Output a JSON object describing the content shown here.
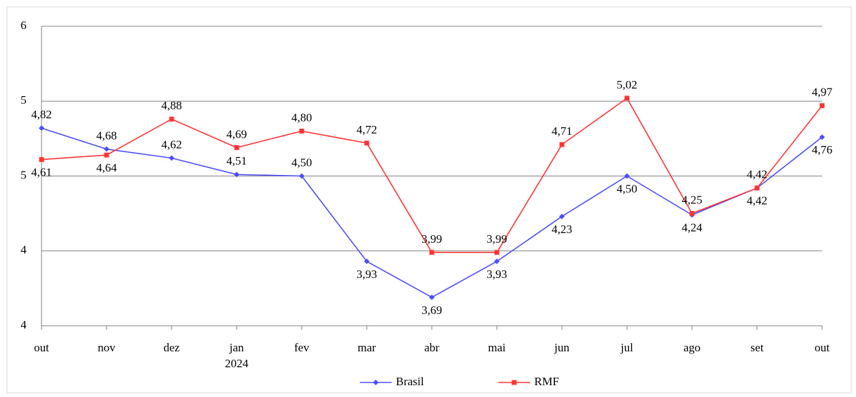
{
  "chart_data": {
    "type": "line",
    "categories": [
      "out",
      "nov",
      "dez",
      "jan",
      "fev",
      "mar",
      "abr",
      "mai",
      "jun",
      "jul",
      "ago",
      "set",
      "out"
    ],
    "category_sublabels": [
      null,
      null,
      null,
      "2024",
      null,
      null,
      null,
      null,
      null,
      null,
      null,
      null,
      null
    ],
    "series": [
      {
        "name": "Brasil",
        "color": "#4d4dff",
        "marker": "diamond",
        "values": [
          4.82,
          4.68,
          4.62,
          4.51,
          4.5,
          3.93,
          3.69,
          3.93,
          4.23,
          4.5,
          4.24,
          4.42,
          4.76
        ],
        "value_labels": [
          "4,82",
          "4,68",
          "4,62",
          "4,51",
          "4,50",
          "3,93",
          "3,69",
          "3,93",
          "4,23",
          "4,50",
          "4,24",
          "4,42",
          "4,76"
        ]
      },
      {
        "name": "RMF",
        "color": "#ff3333",
        "marker": "square",
        "values": [
          4.61,
          4.64,
          4.88,
          4.69,
          4.8,
          4.72,
          3.99,
          3.99,
          4.71,
          5.02,
          4.25,
          4.42,
          4.97
        ],
        "value_labels": [
          "4,61",
          "4,64",
          "4,88",
          "4,69",
          "4,80",
          "4,72",
          "3,99",
          "3,99",
          "4,71",
          "5,02",
          "4,25",
          "4,42",
          "4,97"
        ]
      }
    ],
    "ylim": [
      3.5,
      5.5
    ],
    "yticks": [
      {
        "value": 3.5,
        "label": "4"
      },
      {
        "value": 4,
        "label": "4"
      },
      {
        "value": 4.5,
        "label": "5"
      },
      {
        "value": 5,
        "label": "5"
      },
      {
        "value": 5.5,
        "label": "6"
      }
    ],
    "grid": true,
    "legend": "bottom"
  }
}
